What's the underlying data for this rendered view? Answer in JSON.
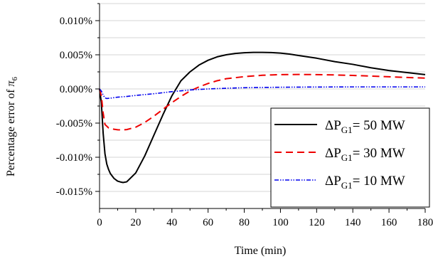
{
  "chart_data": {
    "type": "line",
    "xlabel": "Time (min)",
    "ylabel": {
      "prefix": "Percentage error of ",
      "symbol": "π",
      "subscript": "6"
    },
    "xlim": [
      0,
      180
    ],
    "ylim": [
      -0.0175,
      0.0125
    ],
    "x_ticks": [
      "0",
      "20",
      "40",
      "60",
      "80",
      "100",
      "120",
      "140",
      "160",
      "180"
    ],
    "x_tick_values": [
      0,
      20,
      40,
      60,
      80,
      100,
      120,
      140,
      160,
      180
    ],
    "y_ticks": [
      "0.010%",
      "0.005%",
      "0.000%",
      "-0.005%",
      "-0.010%",
      "-0.015%"
    ],
    "y_tick_values": [
      0.01,
      0.005,
      0.0,
      -0.005,
      -0.01,
      -0.015
    ],
    "y_grid_values": [
      0.0125,
      0.0075,
      0.0025,
      -0.0025,
      -0.0075,
      -0.0125
    ],
    "grid": true,
    "legend_position": "right",
    "series": [
      {
        "name": {
          "pre": "ΔP",
          "sub": "G1",
          "post": "= 50 MW"
        },
        "color": "#000000",
        "dash": "solid",
        "x": [
          0,
          1,
          2,
          3,
          4,
          5,
          6,
          8,
          10,
          12,
          13,
          15,
          20,
          25,
          30,
          35,
          40,
          45,
          50,
          55,
          60,
          65,
          70,
          75,
          80,
          85,
          90,
          95,
          100,
          105,
          110,
          120,
          130,
          140,
          150,
          160,
          170,
          180
        ],
        "y": [
          0.0,
          -0.002,
          -0.0065,
          -0.0095,
          -0.011,
          -0.0118,
          -0.0124,
          -0.0131,
          -0.0135,
          -0.01365,
          -0.0137,
          -0.0136,
          -0.0123,
          -0.0098,
          -0.0068,
          -0.0038,
          -0.001,
          0.0012,
          0.0025,
          0.0035,
          0.0042,
          0.0047,
          0.005,
          0.0052,
          0.0053,
          0.00535,
          0.00535,
          0.00532,
          0.00525,
          0.0051,
          0.0049,
          0.0045,
          0.004,
          0.0036,
          0.0031,
          0.0027,
          0.0024,
          0.0021
        ]
      },
      {
        "name": {
          "pre": "ΔP",
          "sub": "G1",
          "post": "= 30 MW"
        },
        "color": "#ee0000",
        "dash": "dashed",
        "x": [
          0,
          1,
          2,
          3,
          5,
          8,
          10,
          12,
          15,
          20,
          25,
          30,
          35,
          40,
          45,
          50,
          55,
          60,
          65,
          70,
          80,
          90,
          100,
          110,
          120,
          130,
          140,
          150,
          160,
          170,
          180
        ],
        "y": [
          0.0,
          -0.001,
          -0.0035,
          -0.0052,
          -0.0057,
          -0.0059,
          -0.00598,
          -0.006,
          -0.00595,
          -0.0056,
          -0.0049,
          -0.004,
          -0.003,
          -0.002,
          -0.0011,
          -0.0003,
          0.0003,
          0.0008,
          0.0012,
          0.0015,
          0.0018,
          0.002,
          0.0021,
          0.00212,
          0.0021,
          0.00205,
          0.00198,
          0.00188,
          0.00178,
          0.00168,
          0.00158
        ]
      },
      {
        "name": {
          "pre": "ΔP",
          "sub": "G1",
          "post": "= 10 MW"
        },
        "color": "#0000ee",
        "dash": "dashdotdot",
        "x": [
          0,
          1,
          2,
          3,
          4,
          6,
          10,
          15,
          20,
          30,
          40,
          50,
          60,
          70,
          80,
          90,
          100,
          110,
          120,
          130,
          140,
          150,
          160,
          170,
          180
        ],
        "y": [
          0.0,
          -0.0003,
          -0.0009,
          -0.0013,
          -0.0014,
          -0.00135,
          -0.0012,
          -0.0011,
          -0.00095,
          -0.0007,
          -0.0004,
          -0.00015,
          0.0,
          0.0001,
          0.00018,
          0.00022,
          0.00025,
          0.00027,
          0.00028,
          0.00029,
          0.0003,
          0.0003,
          0.0003,
          0.0003,
          0.0003
        ]
      }
    ]
  }
}
